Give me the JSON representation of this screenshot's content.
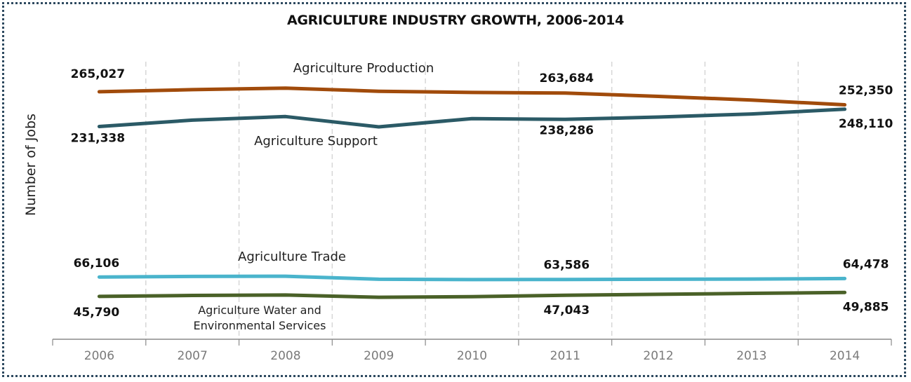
{
  "chart_data": {
    "type": "line",
    "title": "AGRICULTURE INDUSTRY GROWTH, 2006-2014",
    "xlabel": "",
    "ylabel": "Number of Jobs",
    "grid": "vertical-dashed",
    "categories": [
      "2006",
      "2007",
      "2008",
      "2009",
      "2010",
      "2011",
      "2012",
      "2013",
      "2014"
    ],
    "series": [
      {
        "name": "Agriculture Production",
        "color": "#a14b0b",
        "values": [
          265027,
          267000,
          268500,
          265500,
          264300,
          263684,
          260500,
          257000,
          252350
        ],
        "data_labels": [
          {
            "index": 0,
            "text": "265,027"
          },
          {
            "index": 5,
            "text": "263,684"
          },
          {
            "index": 8,
            "text": "252,350"
          }
        ]
      },
      {
        "name": "Agriculture Support",
        "color": "#2b5a66",
        "values": [
          231338,
          237500,
          241000,
          231000,
          239000,
          238286,
          240500,
          243500,
          248110
        ],
        "data_labels": [
          {
            "index": 0,
            "text": "231,338"
          },
          {
            "index": 5,
            "text": "238,286"
          },
          {
            "index": 8,
            "text": "248,110"
          }
        ]
      },
      {
        "name": "Agriculture Trade",
        "color": "#4ab4cc",
        "values": [
          66106,
          66700,
          66900,
          63800,
          63400,
          63586,
          63800,
          64000,
          64478
        ],
        "data_labels": [
          {
            "index": 0,
            "text": "66,106"
          },
          {
            "index": 5,
            "text": "63,586"
          },
          {
            "index": 8,
            "text": "64,478"
          }
        ]
      },
      {
        "name": "Agriculture Water and Environmental Services",
        "name_lines": [
          "Agriculture Water and",
          "Environmental Services"
        ],
        "color": "#4a6128",
        "values": [
          45790,
          46800,
          47300,
          44900,
          45500,
          47043,
          48000,
          49000,
          49885
        ],
        "data_labels": [
          {
            "index": 0,
            "text": "45,790"
          },
          {
            "index": 5,
            "text": "47,043"
          },
          {
            "index": 8,
            "text": "49,885"
          }
        ]
      }
    ]
  }
}
